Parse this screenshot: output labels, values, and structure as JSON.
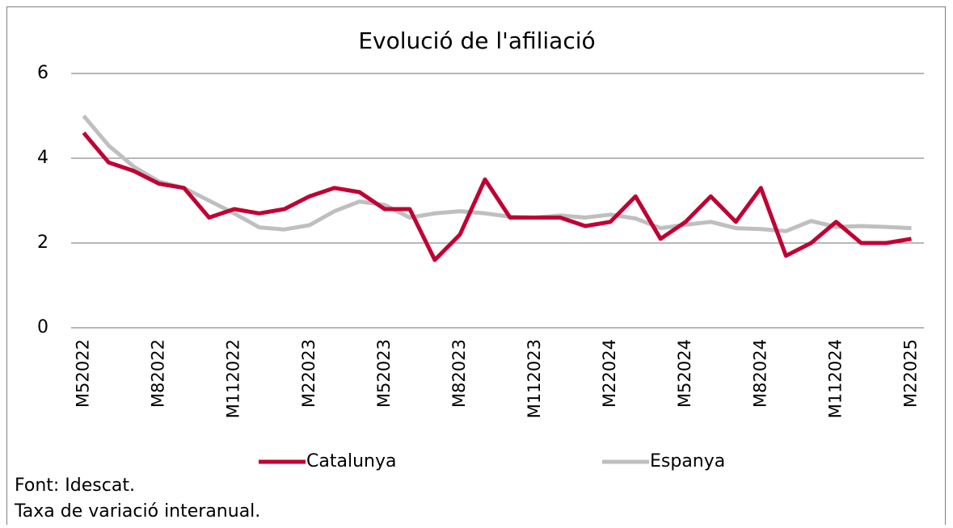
{
  "chart_data": {
    "type": "line",
    "title": "Evolució de l'afiliació",
    "categories": [
      "M52022",
      null,
      null,
      "M82022",
      null,
      null,
      "M112022",
      null,
      null,
      "M22023",
      null,
      null,
      "M52023",
      null,
      null,
      "M82023",
      null,
      null,
      "M112023",
      null,
      null,
      "M22024",
      null,
      null,
      "M52024",
      null,
      null,
      "M82024",
      null,
      null,
      "M112024",
      null,
      null,
      "M22025"
    ],
    "series": [
      {
        "name": "Catalunya",
        "color": "#c00033",
        "values": [
          4.6,
          3.9,
          3.7,
          3.4,
          3.3,
          2.6,
          2.8,
          2.7,
          2.8,
          3.1,
          3.3,
          3.2,
          2.8,
          2.8,
          1.6,
          2.2,
          3.5,
          2.6,
          2.6,
          2.6,
          2.4,
          2.5,
          3.1,
          2.1,
          2.5,
          3.1,
          2.5,
          3.3,
          1.7,
          2.0,
          2.5,
          2.0,
          2.0,
          2.1
        ]
      },
      {
        "name": "Espanya",
        "color": "#bfbfbf",
        "values": [
          5.0,
          4.3,
          3.8,
          3.45,
          3.3,
          3.0,
          2.7,
          2.37,
          2.32,
          2.42,
          2.75,
          2.98,
          2.9,
          2.6,
          2.7,
          2.75,
          2.7,
          2.62,
          2.6,
          2.65,
          2.6,
          2.67,
          2.58,
          2.35,
          2.43,
          2.5,
          2.35,
          2.33,
          2.28,
          2.52,
          2.38,
          2.4,
          2.38,
          2.35
        ]
      }
    ],
    "ylim": [
      0,
      6
    ],
    "yticks": [
      0,
      2,
      4,
      6
    ],
    "grid": true,
    "legend": "bottom",
    "notes": [
      "Font: Idescat.",
      "Taxa de variació interanual."
    ]
  }
}
